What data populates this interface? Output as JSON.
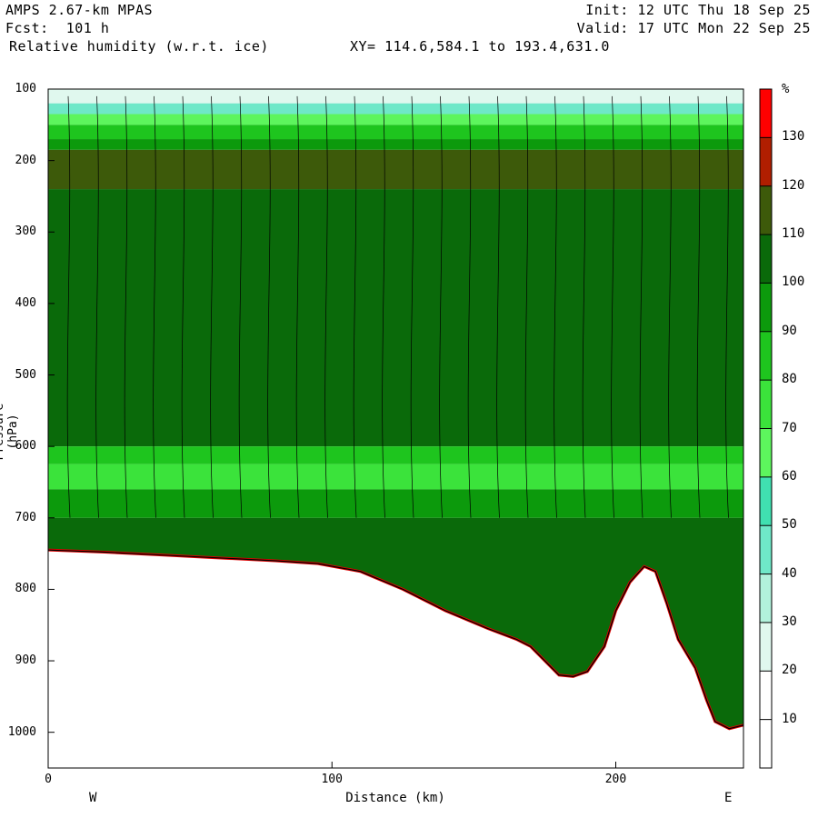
{
  "header": {
    "model": "AMPS 2.67-km MPAS",
    "fcst": "Fcst:  101 h",
    "field": "Relative humidity (w.r.t. ice)",
    "xy": "XY= 114.6,584.1 to 193.4,631.0",
    "init": "Init: 12 UTC Thu 18 Sep 25",
    "valid": "Valid: 17 UTC Mon 22 Sep 25"
  },
  "chart_data": {
    "type": "heatmap",
    "title": "Relative humidity (w.r.t. ice)",
    "xlabel": "Distance (km)",
    "ylabel": "Pressure (hPa)",
    "xlim": [
      0,
      245
    ],
    "ylim": [
      1050,
      100
    ],
    "x_ticks": [
      "0",
      "100",
      "200"
    ],
    "x_tick_values": [
      0,
      100,
      200
    ],
    "y_ticks": [
      "100",
      "200",
      "300",
      "400",
      "500",
      "600",
      "700",
      "800",
      "900",
      "1000"
    ],
    "y_tick_values": [
      100,
      200,
      300,
      400,
      500,
      600,
      700,
      800,
      900,
      1000
    ],
    "x_end_labels": {
      "left": "W",
      "right": "E"
    },
    "colorbar": {
      "unit": "%",
      "levels": [
        10,
        20,
        30,
        40,
        50,
        60,
        70,
        80,
        90,
        100,
        110,
        120,
        130
      ],
      "colors": [
        "#ffffff",
        "#ffffff",
        "#e0f8ee",
        "#b2f2dc",
        "#6fe8c8",
        "#40e0b0",
        "#5df55d",
        "#3be33b",
        "#1ec51e",
        "#0c9a0c",
        "#0a6a0a",
        "#3d5a0a",
        "#b01e00",
        "#ff0000"
      ]
    },
    "terrain_pressure": [
      [
        0,
        745
      ],
      [
        20,
        748
      ],
      [
        40,
        752
      ],
      [
        60,
        756
      ],
      [
        80,
        760
      ],
      [
        95,
        764
      ],
      [
        110,
        775
      ],
      [
        125,
        800
      ],
      [
        140,
        830
      ],
      [
        155,
        855
      ],
      [
        165,
        870
      ],
      [
        170,
        880
      ],
      [
        175,
        900
      ],
      [
        180,
        920
      ],
      [
        185,
        922
      ],
      [
        190,
        915
      ],
      [
        196,
        880
      ],
      [
        200,
        830
      ],
      [
        205,
        790
      ],
      [
        210,
        768
      ],
      [
        214,
        775
      ],
      [
        218,
        820
      ],
      [
        222,
        870
      ],
      [
        228,
        910
      ],
      [
        232,
        955
      ],
      [
        235,
        985
      ],
      [
        240,
        995
      ],
      [
        245,
        990
      ]
    ],
    "rh_layers": [
      {
        "p_top": 100,
        "p_bottom": 120,
        "rh": 20
      },
      {
        "p_top": 120,
        "p_bottom": 135,
        "rh": 40
      },
      {
        "p_top": 135,
        "p_bottom": 150,
        "rh": 60
      },
      {
        "p_top": 150,
        "p_bottom": 170,
        "rh": 80
      },
      {
        "p_top": 170,
        "p_bottom": 185,
        "rh": 95
      },
      {
        "p_top": 185,
        "p_bottom": 240,
        "rh": 115
      },
      {
        "p_top": 240,
        "p_bottom": 600,
        "rh": 105
      },
      {
        "p_top": 600,
        "p_bottom": 625,
        "rh": 85
      },
      {
        "p_top": 625,
        "p_bottom": 660,
        "rh": 70
      },
      {
        "p_top": 660,
        "p_bottom": 700,
        "rh": 90
      },
      {
        "p_top": 700,
        "p_bottom": 1050,
        "rh": 105
      }
    ]
  }
}
